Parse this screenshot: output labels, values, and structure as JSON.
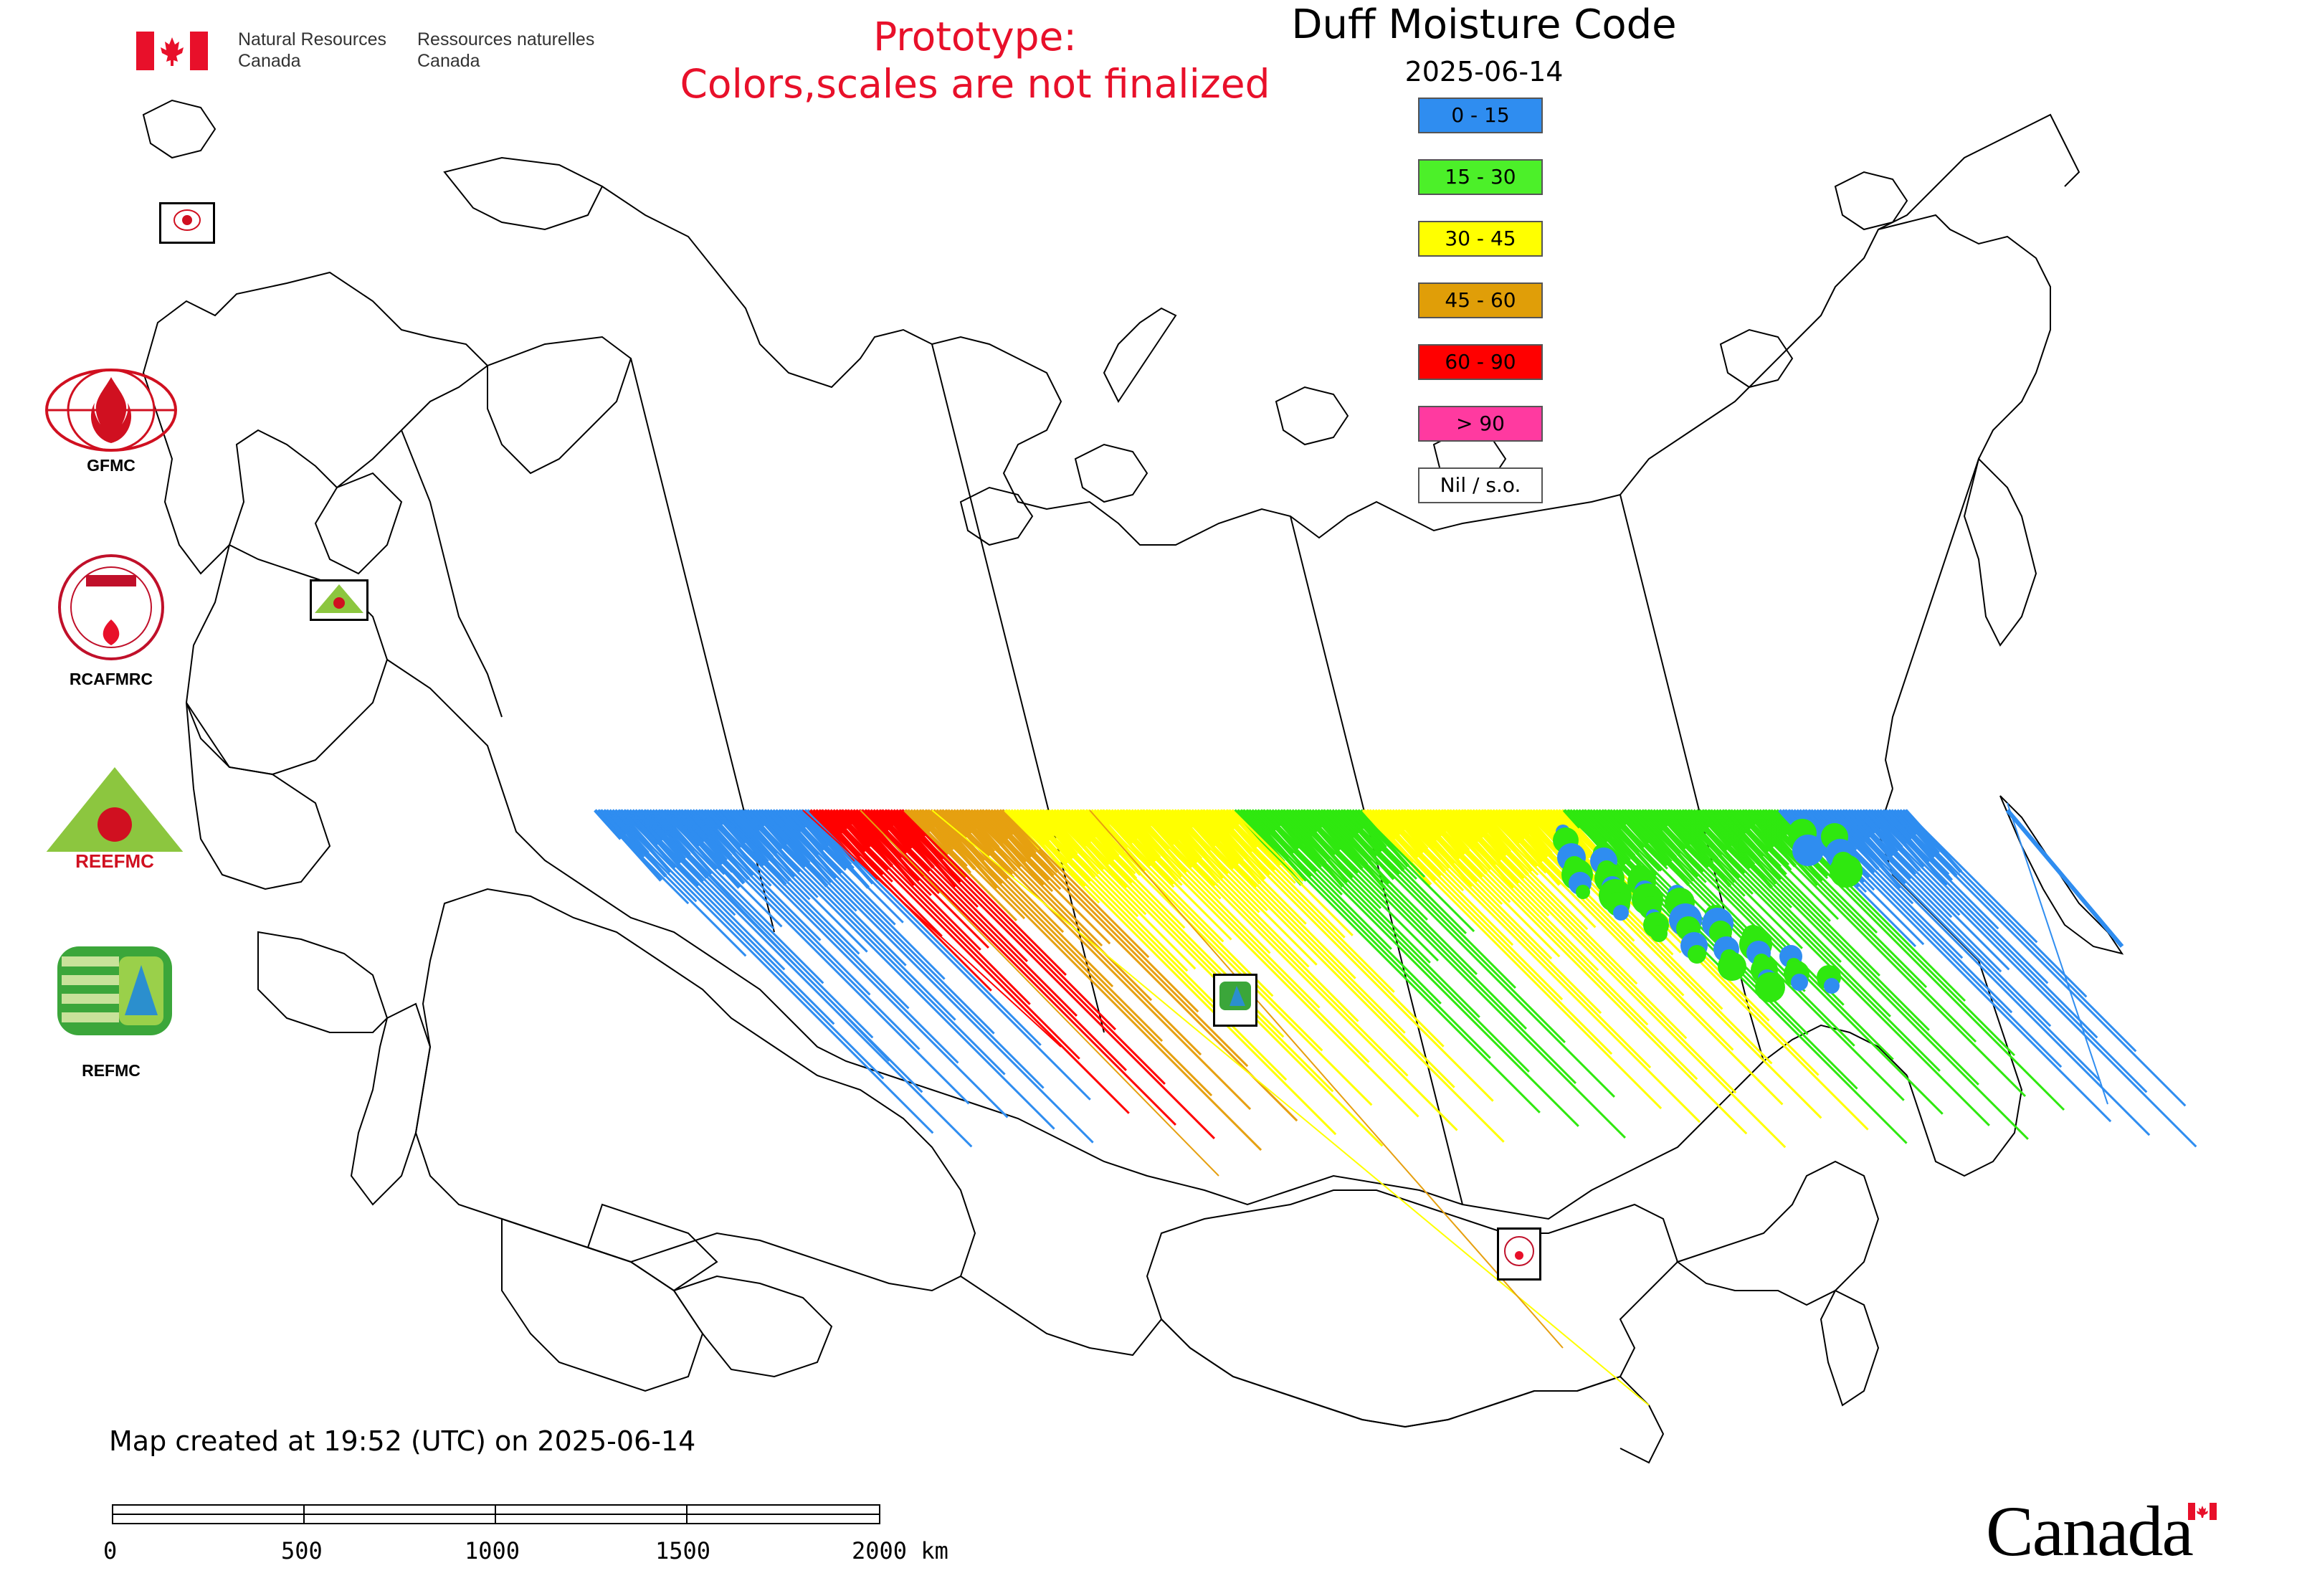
{
  "header": {
    "nrcan_en_line1": "Natural Resources",
    "nrcan_en_line2": "Canada",
    "nrcan_fr_line1": "Ressources naturelles",
    "nrcan_fr_line2": "Canada",
    "prototype_line1": "Prototype:",
    "prototype_line2": "Colors,scales are not finalized"
  },
  "map": {
    "title": "Duff Moisture Code",
    "date": "2025-06-14",
    "colors": {
      "blue": "#2f8df0",
      "green": "#2fe80f",
      "yellow": "#ffff00",
      "orange": "#e6a010",
      "red": "#ff0000",
      "pink": "#ff3aa0",
      "outline": "#000000"
    }
  },
  "legend": [
    {
      "label": "0 - 15",
      "color": "#2f8df0"
    },
    {
      "label": "15 - 30",
      "color": "#4cf029"
    },
    {
      "label": "30 - 45",
      "color": "#ffff00"
    },
    {
      "label": "45 - 60",
      "color": "#e09e08"
    },
    {
      "label": "60 - 90",
      "color": "#ff0000"
    },
    {
      "label": "> 90",
      "color": "#ff3aa0"
    },
    {
      "label": "Nil / s.o.",
      "color": "#ffffff"
    }
  ],
  "logos": {
    "gfmc": "GFMC",
    "rcafmrc": "RCAFMRC",
    "reefmc": "REEFMC",
    "refmc": "REFMC"
  },
  "footer": {
    "created": "Map created at 19:52 (UTC) on 2025-06-14",
    "scale_labels": [
      "0",
      "500",
      "1000",
      "1500",
      "2000 km"
    ],
    "wordmark": "Canada"
  }
}
